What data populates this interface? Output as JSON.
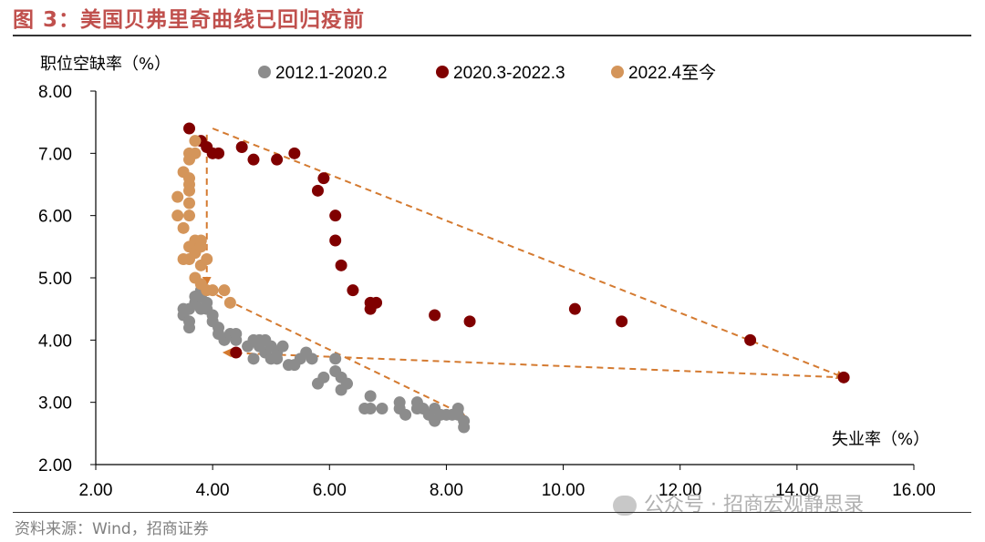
{
  "header": {
    "title": "图 3：美国贝弗里奇曲线已回归疫前"
  },
  "footer": {
    "source": "资料来源：Wind，招商证券",
    "watermark": "公众号 · 招商宏观静思录"
  },
  "colors": {
    "series1": "#8c8c8c",
    "series2": "#800000",
    "series3": "#d4955a",
    "arrows": "#d47a30"
  },
  "chart_data": {
    "type": "scatter",
    "title": "美国贝弗里奇曲线已回归疫前",
    "xlabel": "失业率（%）",
    "ylabel": "职位空缺率（%）",
    "xlim": [
      2,
      16
    ],
    "ylim": [
      2,
      8
    ],
    "x_ticks": [
      "2.00",
      "4.00",
      "6.00",
      "8.00",
      "10.00",
      "12.00",
      "14.00",
      "16.00"
    ],
    "y_ticks": [
      "2.00",
      "3.00",
      "4.00",
      "5.00",
      "6.00",
      "7.00",
      "8.00"
    ],
    "legend_position": "top",
    "series": [
      {
        "name": "2012.1-2020.2",
        "points": [
          [
            3.5,
            4.5
          ],
          [
            3.5,
            4.4
          ],
          [
            3.6,
            4.3
          ],
          [
            3.6,
            4.2
          ],
          [
            3.6,
            4.5
          ],
          [
            3.7,
            4.6
          ],
          [
            3.7,
            4.7
          ],
          [
            3.8,
            4.5
          ],
          [
            3.8,
            4.8
          ],
          [
            3.9,
            4.6
          ],
          [
            3.9,
            4.5
          ],
          [
            3.8,
            4.7
          ],
          [
            4.0,
            4.3
          ],
          [
            4.0,
            4.4
          ],
          [
            4.1,
            4.2
          ],
          [
            4.1,
            4.1
          ],
          [
            4.2,
            4.0
          ],
          [
            4.3,
            4.1
          ],
          [
            4.4,
            4.0
          ],
          [
            4.4,
            4.1
          ],
          [
            4.6,
            3.9
          ],
          [
            4.7,
            4.0
          ],
          [
            4.7,
            3.7
          ],
          [
            4.8,
            3.9
          ],
          [
            4.8,
            4.0
          ],
          [
            4.9,
            3.8
          ],
          [
            4.9,
            4.0
          ],
          [
            5.0,
            3.7
          ],
          [
            5.0,
            3.9
          ],
          [
            5.1,
            3.7
          ],
          [
            5.1,
            3.8
          ],
          [
            5.2,
            3.9
          ],
          [
            5.3,
            3.6
          ],
          [
            5.4,
            3.6
          ],
          [
            5.5,
            3.7
          ],
          [
            5.6,
            3.8
          ],
          [
            5.7,
            3.7
          ],
          [
            5.8,
            3.3
          ],
          [
            5.9,
            3.4
          ],
          [
            6.1,
            3.7
          ],
          [
            6.1,
            3.5
          ],
          [
            6.2,
            3.4
          ],
          [
            6.3,
            3.3
          ],
          [
            6.2,
            3.2
          ],
          [
            6.6,
            2.9
          ],
          [
            6.7,
            3.1
          ],
          [
            6.7,
            2.9
          ],
          [
            6.9,
            2.9
          ],
          [
            7.2,
            3.0
          ],
          [
            7.2,
            2.9
          ],
          [
            7.3,
            2.8
          ],
          [
            7.5,
            3.0
          ],
          [
            7.5,
            2.9
          ],
          [
            7.6,
            2.9
          ],
          [
            7.7,
            2.8
          ],
          [
            7.8,
            2.7
          ],
          [
            7.8,
            2.9
          ],
          [
            7.9,
            2.8
          ],
          [
            8.0,
            2.8
          ],
          [
            8.1,
            2.8
          ],
          [
            8.2,
            2.9
          ],
          [
            8.2,
            2.8
          ],
          [
            8.3,
            2.7
          ],
          [
            8.3,
            2.6
          ]
        ]
      },
      {
        "name": "2020.3-2022.3",
        "points": [
          [
            14.8,
            3.4
          ],
          [
            13.2,
            4.0
          ],
          [
            11.0,
            4.3
          ],
          [
            10.2,
            4.5
          ],
          [
            8.4,
            4.3
          ],
          [
            7.8,
            4.4
          ],
          [
            6.8,
            4.6
          ],
          [
            6.7,
            4.6
          ],
          [
            6.7,
            4.5
          ],
          [
            6.4,
            4.8
          ],
          [
            6.2,
            5.2
          ],
          [
            6.1,
            5.6
          ],
          [
            6.1,
            6.0
          ],
          [
            5.9,
            6.6
          ],
          [
            5.8,
            6.4
          ],
          [
            5.4,
            7.0
          ],
          [
            5.1,
            6.9
          ],
          [
            4.7,
            6.9
          ],
          [
            4.5,
            7.1
          ],
          [
            4.1,
            7.0
          ],
          [
            4.0,
            7.0
          ],
          [
            3.9,
            7.1
          ],
          [
            3.8,
            7.2
          ],
          [
            3.6,
            7.4
          ],
          [
            4.4,
            3.8
          ]
        ]
      },
      {
        "name": "2022.4至今",
        "points": [
          [
            3.7,
            7.2
          ],
          [
            3.6,
            7.0
          ],
          [
            3.7,
            7.0
          ],
          [
            3.6,
            6.9
          ],
          [
            3.5,
            6.7
          ],
          [
            3.6,
            6.6
          ],
          [
            3.6,
            6.5
          ],
          [
            3.6,
            6.4
          ],
          [
            3.4,
            6.3
          ],
          [
            3.6,
            6.2
          ],
          [
            3.6,
            6.0
          ],
          [
            3.4,
            6.0
          ],
          [
            3.5,
            5.8
          ],
          [
            3.7,
            5.6
          ],
          [
            3.8,
            5.6
          ],
          [
            3.6,
            5.5
          ],
          [
            3.7,
            5.4
          ],
          [
            3.6,
            5.3
          ],
          [
            3.8,
            5.2
          ],
          [
            3.7,
            5.0
          ],
          [
            3.8,
            4.9
          ],
          [
            3.9,
            4.8
          ],
          [
            4.0,
            4.8
          ],
          [
            4.2,
            4.8
          ],
          [
            4.3,
            4.6
          ],
          [
            3.9,
            5.3
          ],
          [
            3.5,
            5.3
          ],
          [
            3.8,
            5.5
          ]
        ]
      }
    ],
    "arrows": [
      [
        [
          4.0,
          7.4
        ],
        [
          14.8,
          3.4
        ]
      ],
      [
        [
          14.8,
          3.4
        ],
        [
          4.2,
          3.8
        ]
      ],
      [
        [
          3.9,
          7.3
        ],
        [
          3.9,
          4.9
        ]
      ],
      [
        [
          3.9,
          4.8
        ],
        [
          8.3,
          2.8
        ]
      ]
    ]
  }
}
